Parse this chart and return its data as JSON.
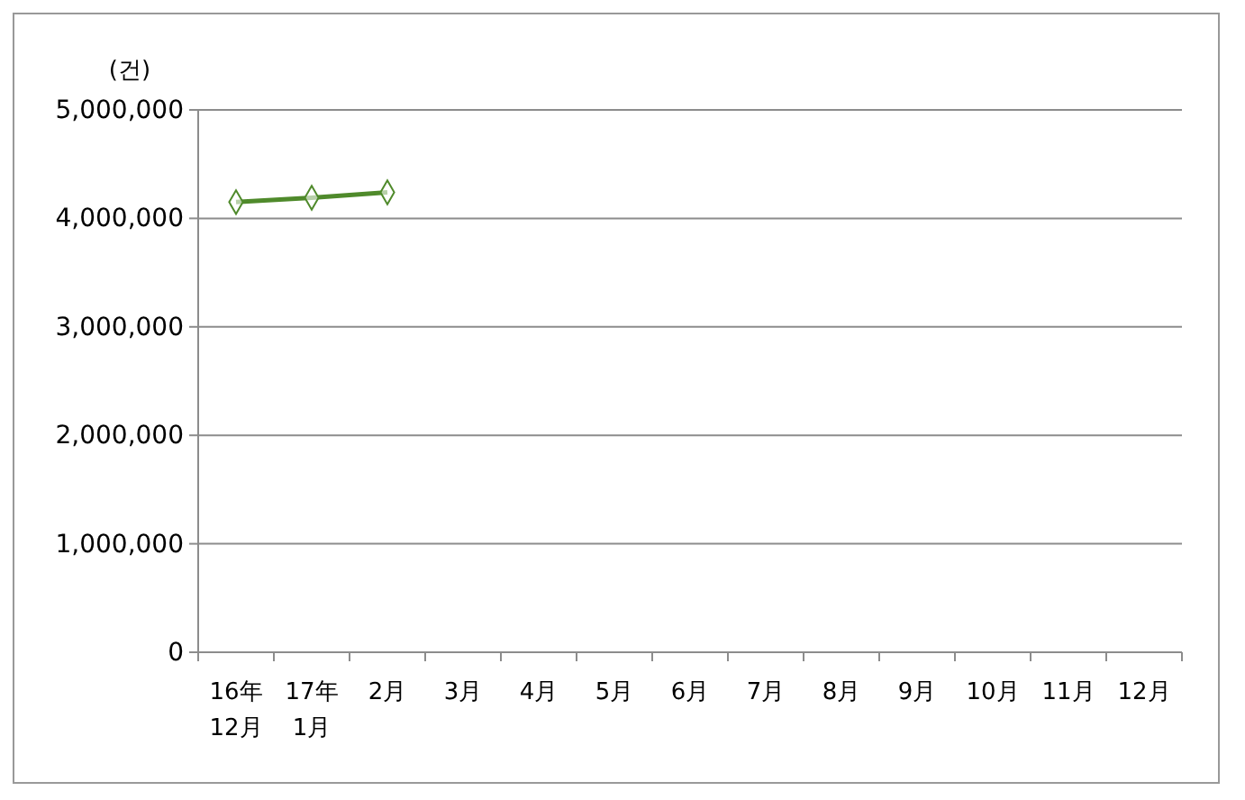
{
  "chart_data": {
    "type": "line",
    "ylabel": "(건)",
    "categories": [
      "16年\n12月",
      "17年\n1月",
      "2月",
      "3月",
      "4月",
      "5月",
      "6月",
      "7月",
      "8月",
      "9月",
      "10月",
      "11月",
      "12月"
    ],
    "series": [
      {
        "color": "#4f8a2b",
        "values": [
          4150000,
          4190000,
          4240000,
          null,
          null,
          null,
          null,
          null,
          null,
          null,
          null,
          null,
          null
        ]
      }
    ],
    "ylim": [
      0,
      5000000
    ],
    "yticks": [
      {
        "value": 0,
        "label": "0"
      },
      {
        "value": 1000000,
        "label": "1,000,000"
      },
      {
        "value": 2000000,
        "label": "2,000,000"
      },
      {
        "value": 3000000,
        "label": "3,000,000"
      },
      {
        "value": 4000000,
        "label": "4,000,000"
      },
      {
        "value": 5000000,
        "label": "5,000,000"
      }
    ],
    "grid": "y",
    "marker": "diamond",
    "line_style": "solid"
  }
}
